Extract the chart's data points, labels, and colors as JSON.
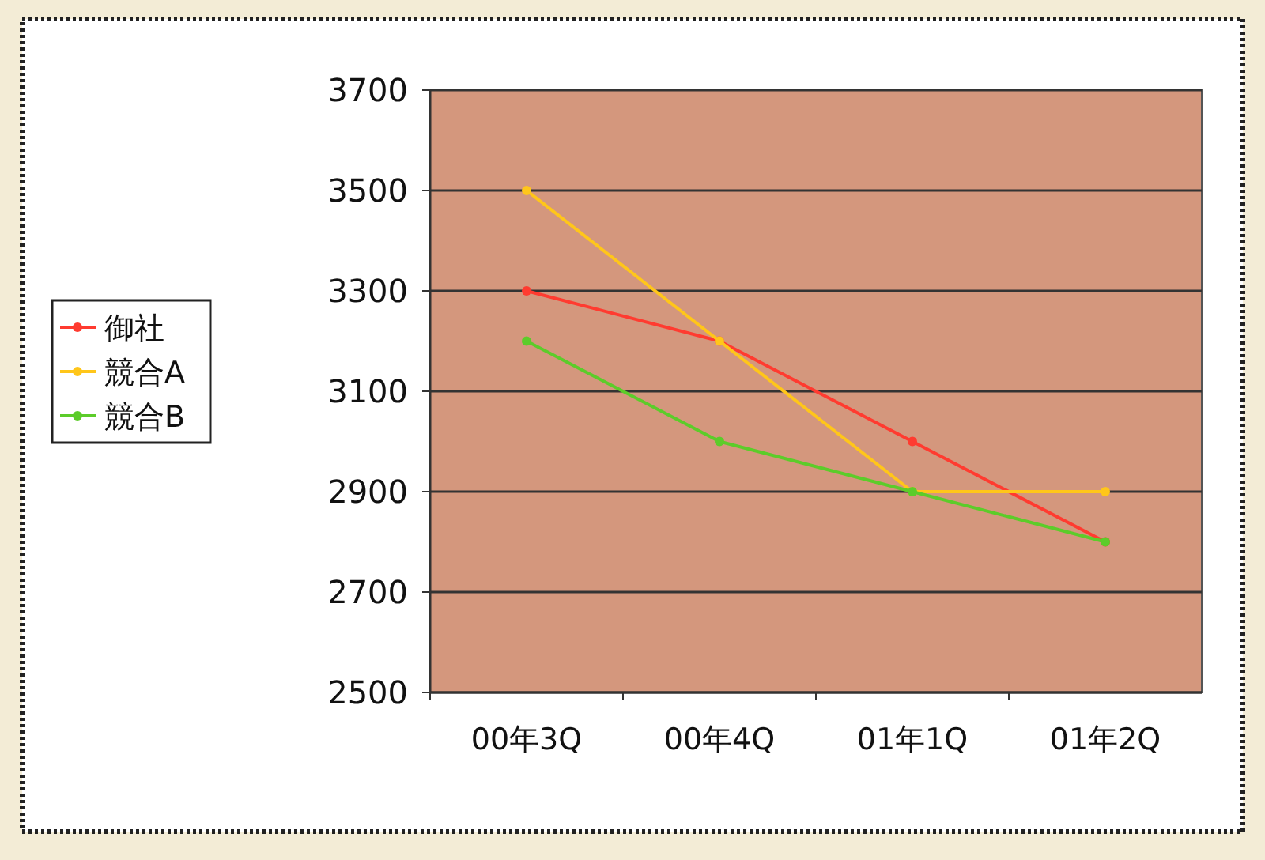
{
  "chart_data": {
    "type": "line",
    "categories": [
      "00年3Q",
      "00年4Q",
      "01年1Q",
      "01年2Q"
    ],
    "series": [
      {
        "name": "御社",
        "color": "#ff3b30",
        "values": [
          3300,
          3200,
          3000,
          2800
        ]
      },
      {
        "name": "競合A",
        "color": "#ffc61a",
        "values": [
          3500,
          3200,
          2900,
          2900
        ]
      },
      {
        "name": "競合B",
        "color": "#5ccc2a",
        "values": [
          3200,
          3000,
          2900,
          2800
        ]
      }
    ],
    "ylim": [
      2500,
      3700
    ],
    "yticks": [
      2500,
      2700,
      2900,
      3100,
      3300,
      3500,
      3700
    ],
    "grid": "y",
    "legend": "left",
    "marker": "circle"
  }
}
